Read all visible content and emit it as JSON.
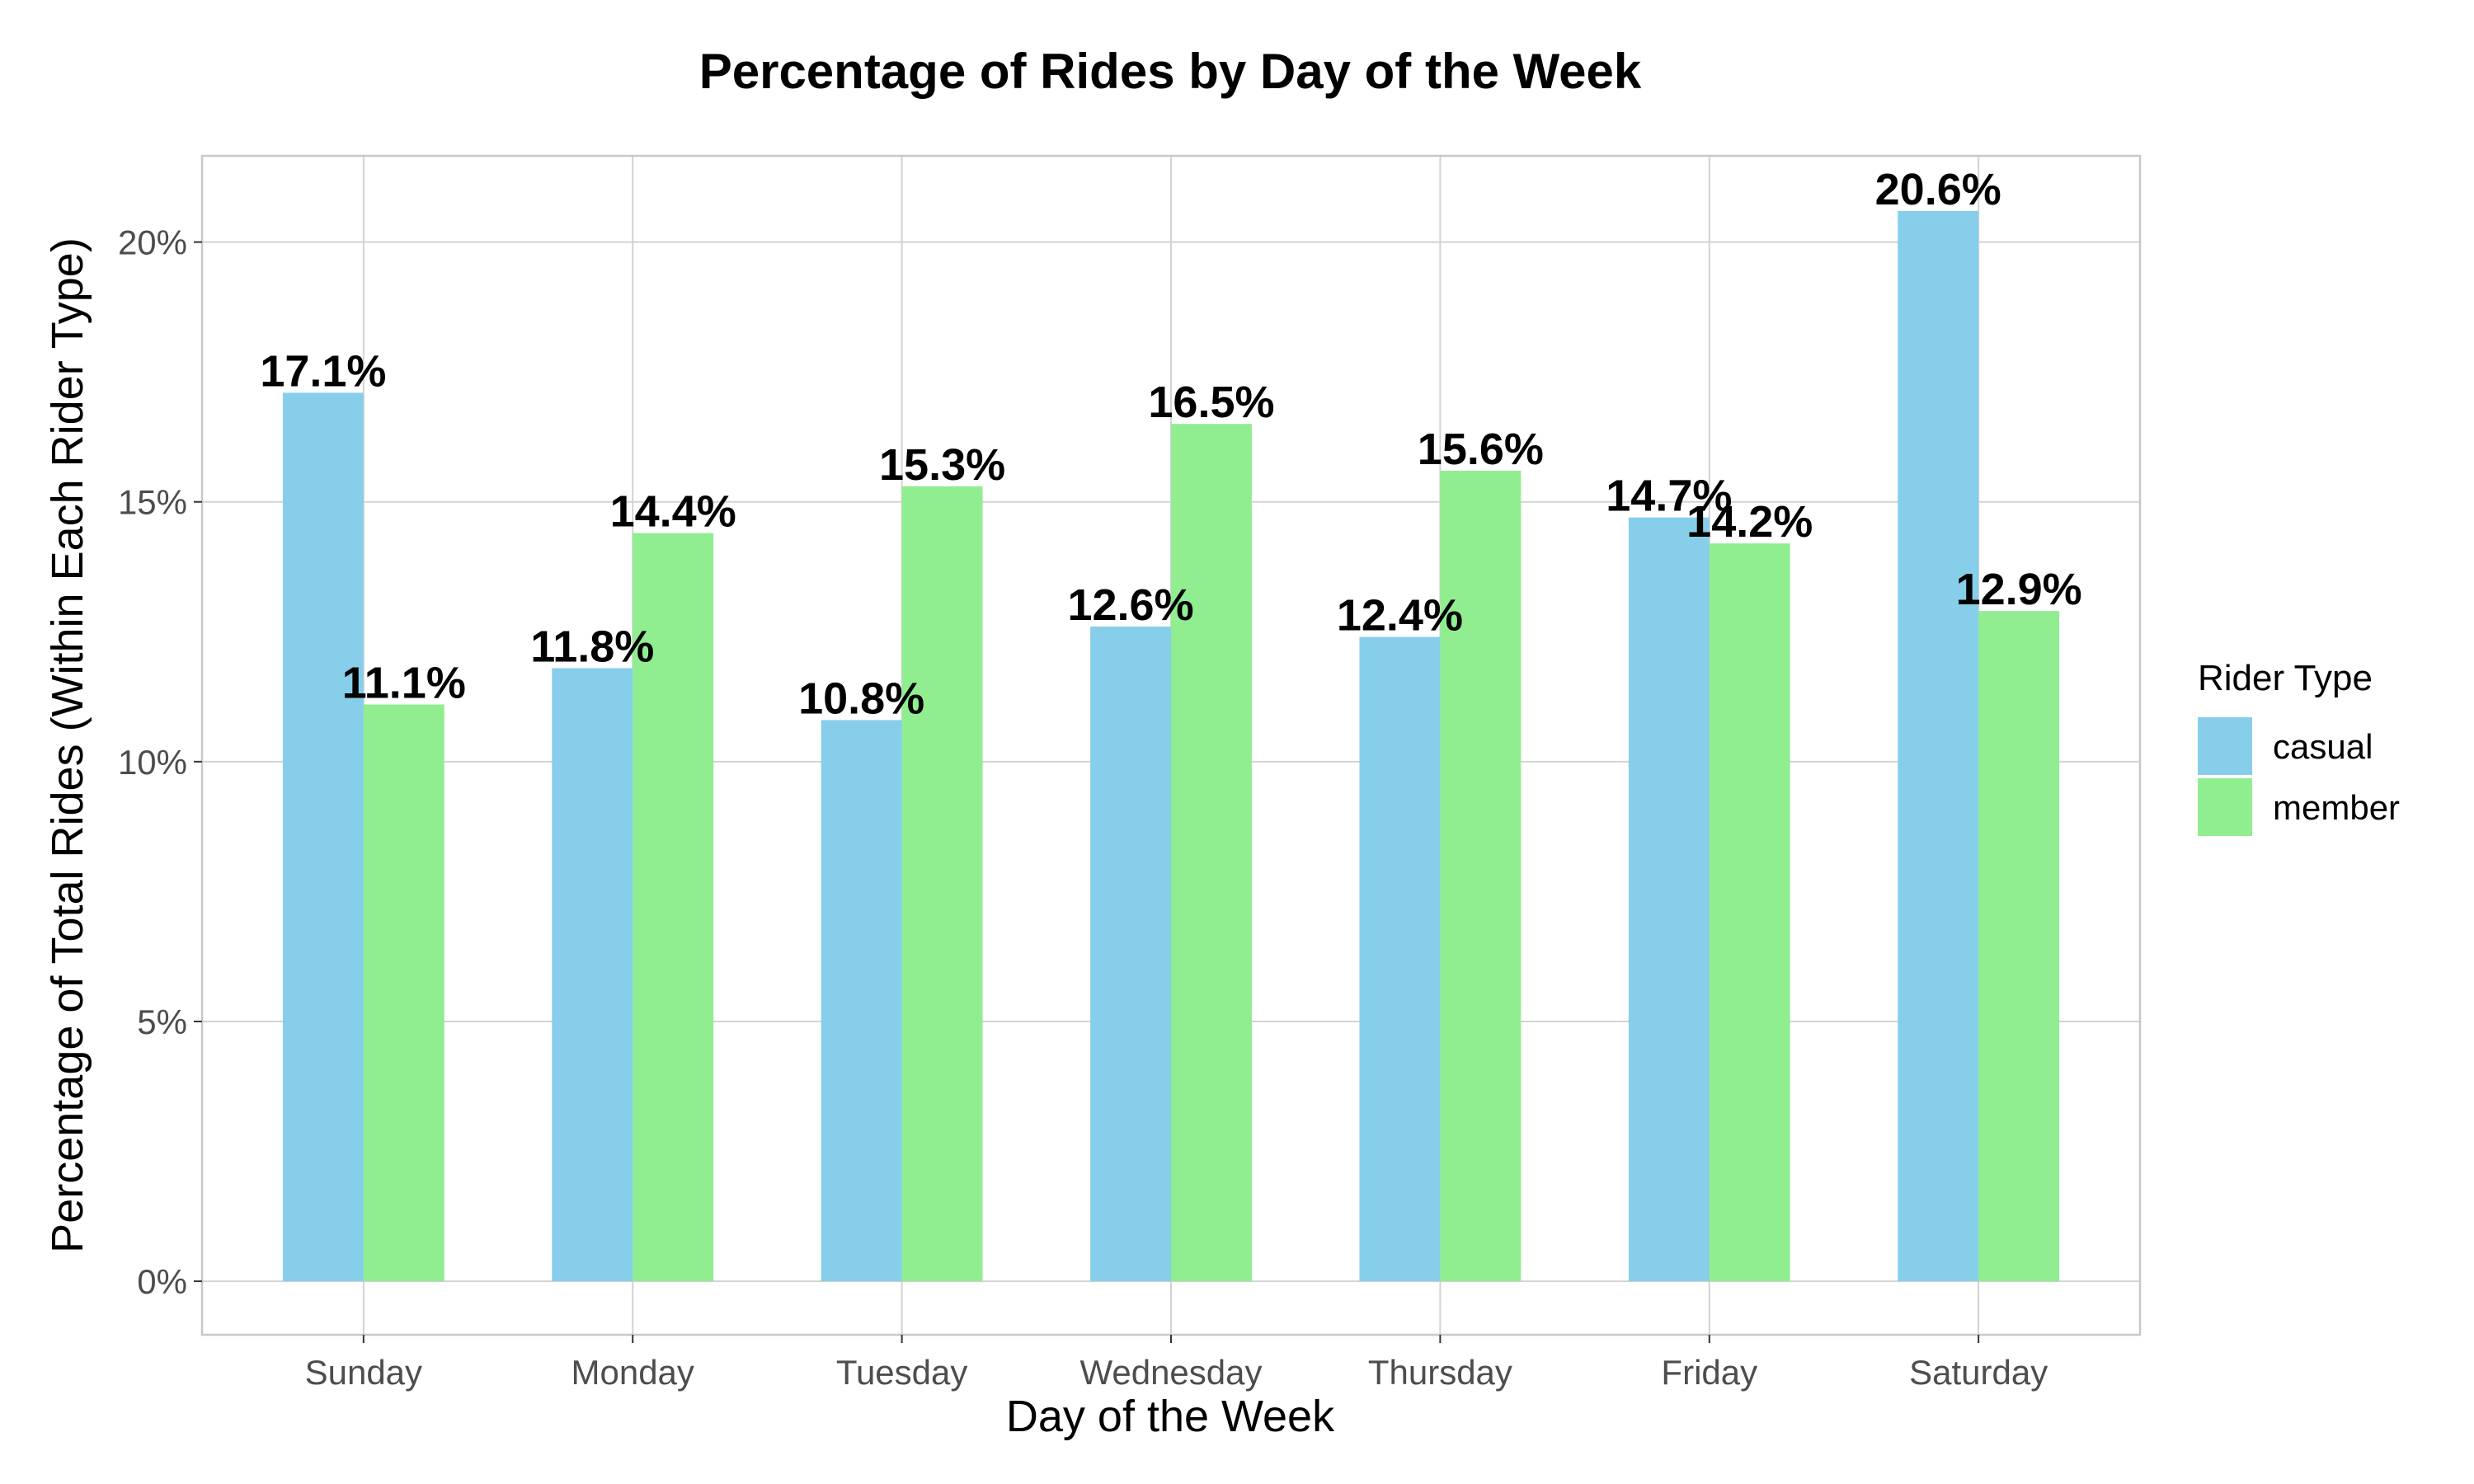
{
  "chart_data": {
    "type": "bar",
    "title": "Percentage of Rides by Day of the Week",
    "xlabel": "Day of the Week",
    "ylabel": "Percentage of Total Rides (Within Each Rider Type)",
    "categories": [
      "Sunday",
      "Monday",
      "Tuesday",
      "Wednesday",
      "Thursday",
      "Friday",
      "Saturday"
    ],
    "series": [
      {
        "name": "casual",
        "color": "#87CEEB",
        "values": [
          17.1,
          11.8,
          10.8,
          12.6,
          12.4,
          14.7,
          20.6
        ],
        "labels": [
          "17.1%",
          "11.8%",
          "10.8%",
          "12.6%",
          "12.4%",
          "14.7%",
          "20.6%"
        ]
      },
      {
        "name": "member",
        "color": "#90EE90",
        "values": [
          11.1,
          14.4,
          15.3,
          16.5,
          15.6,
          14.2,
          12.9
        ],
        "labels": [
          "11.1%",
          "14.4%",
          "15.3%",
          "16.5%",
          "15.6%",
          "14.2%",
          "12.9%"
        ]
      }
    ],
    "yticks": [
      0,
      5,
      10,
      15,
      20
    ],
    "ytick_labels": [
      "0%",
      "5%",
      "10%",
      "15%",
      "20%"
    ],
    "ylim": [
      -1.03,
      21.66
    ],
    "grid": true,
    "legend": {
      "title": "Rider Type",
      "position": "right"
    }
  }
}
